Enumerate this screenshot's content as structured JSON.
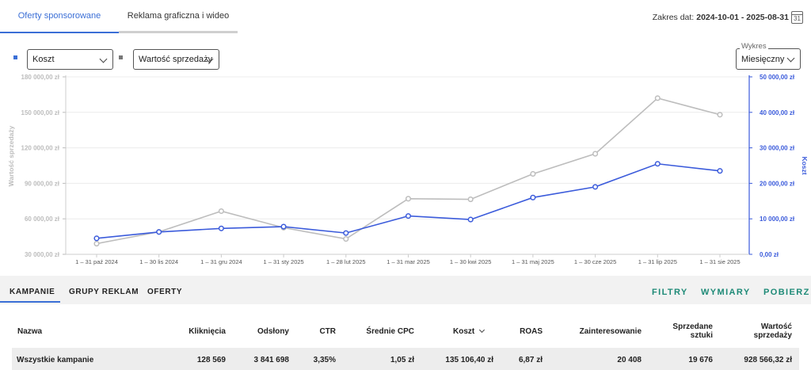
{
  "tabs": [
    {
      "label": "Oferty sponsorowane",
      "active": true
    },
    {
      "label": "Reklama graficzna i wideo",
      "active": false
    }
  ],
  "date_range": {
    "label": "Zakres dat:",
    "value": "2024-10-01 - 2025-08-31",
    "calendar_day": "31"
  },
  "controls": {
    "metric_left": "Koszt",
    "metric_right": "Wartość sprzedaży",
    "chart_mode_label": "Wykres",
    "chart_mode_value": "Miesięczny"
  },
  "colors": {
    "koszt": "#3b5bdb",
    "sales": "#bdbdbd",
    "accent": "#3b6fd6",
    "action": "#1e8a77"
  },
  "chart_data": {
    "type": "line",
    "categories": [
      "1 – 31 paź 2024",
      "1 – 30 lis 2024",
      "1 – 31 gru 2024",
      "1 – 31 sty 2025",
      "1 – 28 lut 2025",
      "1 – 31 mar 2025",
      "1 – 30 kwi 2025",
      "1 – 31 maj 2025",
      "1 – 30 cze 2025",
      "1 – 31 lip 2025",
      "1 – 31 sie 2025"
    ],
    "series": [
      {
        "name": "Wartość sprzedaży",
        "axis": "left",
        "color": "#bdbdbd",
        "values": [
          39000,
          49000,
          66500,
          52500,
          43000,
          77000,
          76500,
          98000,
          115000,
          162000,
          148000
        ]
      },
      {
        "name": "Koszt",
        "axis": "right",
        "color": "#3b5bdb",
        "values": [
          4500,
          6300,
          7300,
          7800,
          6000,
          10800,
          9800,
          16000,
          19000,
          25500,
          23500
        ]
      }
    ],
    "ylabel_left": "Wartość sprzedaży",
    "ylabel_right": "Koszt",
    "yticks_left": [
      "180 000,00 zł",
      "150 000,00 zł",
      "120 000,00 zł",
      "90 000,00 zł",
      "60 000,00 zł",
      "30 000,00 zł"
    ],
    "yticks_right": [
      "50 000,00 zł",
      "40 000,00 zł",
      "30 000,00 zł",
      "20 000,00 zł",
      "10 000,00 zł",
      "0,00 zł"
    ],
    "ylim_left": [
      30000,
      180000
    ],
    "ylim_right": [
      0,
      50000
    ],
    "grid": true
  },
  "subtabs": [
    "KAMPANIE",
    "GRUPY REKLAM",
    "OFERTY"
  ],
  "actions": [
    "FILTRY",
    "WYMIARY",
    "POBIERZ"
  ],
  "table": {
    "headers": [
      "Nazwa",
      "Kliknięcia",
      "Odsłony",
      "CTR",
      "Średnie CPC",
      "Koszt",
      "ROAS",
      "Zainteresowanie",
      "Sprzedane sztuki",
      "Wartość sprzedaży"
    ],
    "total_row": [
      "Wszystkie kampanie",
      "128 569",
      "3 841 698",
      "3,35%",
      "1,05 zł",
      "135 106,40 zł",
      "6,87 zł",
      "20 408",
      "19 676",
      "928 566,32 zł"
    ]
  }
}
